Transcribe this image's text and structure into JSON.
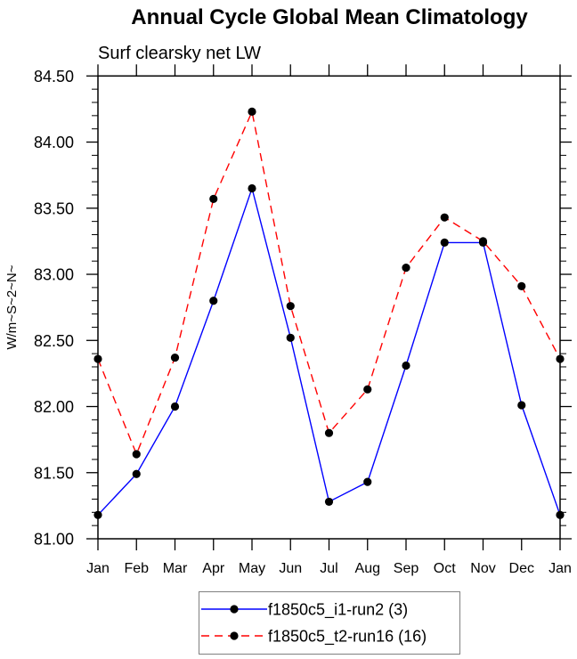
{
  "chart_data": {
    "type": "line",
    "title": "Annual Cycle Global Mean Climatology",
    "subtitle": "Surf clearsky net LW",
    "xlabel": "",
    "ylabel": "W/m~S~2~N~",
    "categories": [
      "Jan",
      "Feb",
      "Mar",
      "Apr",
      "May",
      "Jun",
      "Jul",
      "Aug",
      "Sep",
      "Oct",
      "Nov",
      "Dec",
      "Jan"
    ],
    "ylim": [
      81.0,
      84.5
    ],
    "yticks": [
      81.0,
      81.5,
      82.0,
      82.5,
      83.0,
      83.5,
      84.0,
      84.5
    ],
    "ytick_labels": [
      "81.00",
      "81.50",
      "82.00",
      "82.50",
      "83.00",
      "83.50",
      "84.00",
      "84.50"
    ],
    "yminor_step": 0.1,
    "grid": false,
    "legend_position": "bottom-center",
    "series": [
      {
        "name": "f1850c5_i1-run2 (3)",
        "color": "#0000ff",
        "line_style": "solid",
        "marker": "filled-circle",
        "values": [
          81.18,
          81.49,
          82.0,
          82.8,
          83.65,
          82.52,
          81.28,
          81.43,
          82.31,
          83.24,
          83.24,
          82.01,
          81.18
        ]
      },
      {
        "name": "f1850c5_t2-run16 (16)",
        "color": "#ff0000",
        "line_style": "dashed",
        "marker": "filled-circle",
        "values": [
          82.36,
          81.64,
          82.37,
          83.57,
          84.23,
          82.76,
          81.8,
          82.13,
          83.05,
          83.43,
          83.25,
          82.91,
          82.36
        ]
      }
    ]
  }
}
